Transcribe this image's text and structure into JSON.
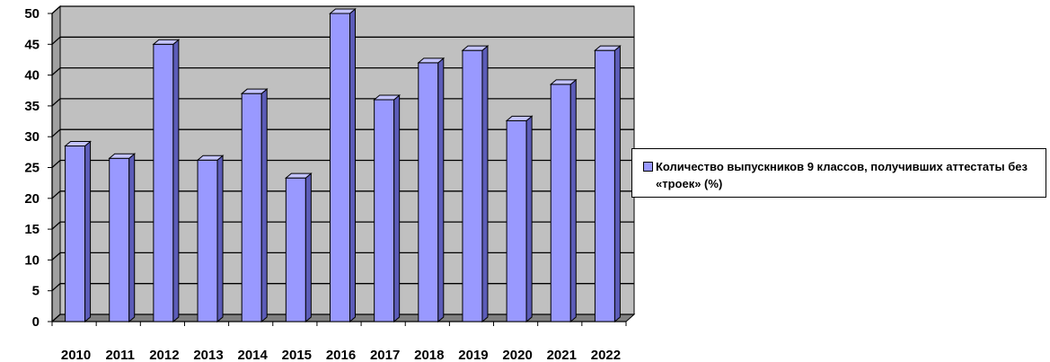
{
  "chart_data": {
    "type": "bar",
    "categories": [
      "2010",
      "2011",
      "2012",
      "2013",
      "2014",
      "2015",
      "2016",
      "2017",
      "2018",
      "2019",
      "2020",
      "2021",
      "2022"
    ],
    "series": [
      {
        "name": "Количество выпускников  9 классов, получивших аттестаты без «троек» (%)",
        "values": [
          28.5,
          26.5,
          45,
          26.2,
          37,
          23.3,
          50,
          36,
          42,
          44,
          32.6,
          38.5,
          44
        ]
      }
    ],
    "ylim": [
      0,
      50
    ],
    "yticks": [
      0,
      5,
      10,
      15,
      20,
      25,
      30,
      35,
      40,
      45,
      50
    ],
    "grid": true,
    "legend_position": "right",
    "colors": {
      "bar_front": "#9999ff",
      "bar_side": "#5c5cb8",
      "bar_top": "#c4c4ff",
      "wall": "#c0c0c0"
    }
  }
}
